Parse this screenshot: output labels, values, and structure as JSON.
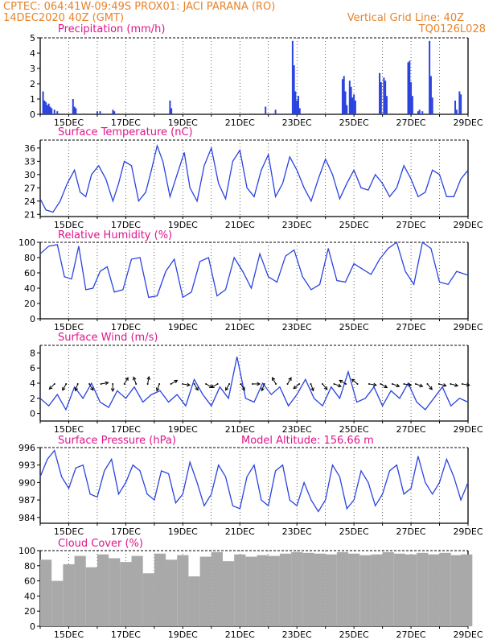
{
  "header": {
    "line1": "CPTEC:  064:41W-09:49S   PROX01: JACI PARANA (RO)",
    "line2": "14DEC2020 40Z (GMT)",
    "right1": "Vertical Grid Line: 40Z",
    "right2": "TQ0126L028"
  },
  "colors": {
    "header": "#e8832a",
    "panel_title": "#e0148c",
    "series": "#2a43e0",
    "cloud": "#a9a9a9",
    "grid": "#000000"
  },
  "chart_data": [
    {
      "type": "bar",
      "id": "precip",
      "title": "Precipitation (mm/h)",
      "ylim": [
        0,
        5
      ],
      "yticks": [
        0,
        1,
        2,
        3,
        4,
        5
      ],
      "xticks": [
        "15DEC",
        "17DEC",
        "19DEC",
        "21DEC",
        "23DEC",
        "25DEC",
        "27DEC",
        "29DEC"
      ],
      "bars": [
        {
          "t": 0.1,
          "v": 1.5
        },
        {
          "t": 0.15,
          "v": 0.9
        },
        {
          "t": 0.2,
          "v": 0.8
        },
        {
          "t": 0.25,
          "v": 0.6
        },
        {
          "t": 0.3,
          "v": 0.7
        },
        {
          "t": 0.35,
          "v": 0.5
        },
        {
          "t": 0.4,
          "v": 0.4
        },
        {
          "t": 0.5,
          "v": 0.3
        },
        {
          "t": 0.6,
          "v": 0.2
        },
        {
          "t": 1.15,
          "v": 1.0
        },
        {
          "t": 1.2,
          "v": 0.5
        },
        {
          "t": 1.25,
          "v": 0.4
        },
        {
          "t": 2.0,
          "v": 0.2
        },
        {
          "t": 2.1,
          "v": 0.2
        },
        {
          "t": 2.55,
          "v": 0.3
        },
        {
          "t": 2.6,
          "v": 0.2
        },
        {
          "t": 4.55,
          "v": 0.9
        },
        {
          "t": 4.6,
          "v": 0.4
        },
        {
          "t": 7.9,
          "v": 0.5
        },
        {
          "t": 8.25,
          "v": 0.3
        },
        {
          "t": 8.85,
          "v": 4.8
        },
        {
          "t": 8.9,
          "v": 3.2
        },
        {
          "t": 8.95,
          "v": 1.5
        },
        {
          "t": 9.0,
          "v": 0.9
        },
        {
          "t": 9.05,
          "v": 1.2
        },
        {
          "t": 9.1,
          "v": 0.4
        },
        {
          "t": 10.6,
          "v": 2.3
        },
        {
          "t": 10.65,
          "v": 2.5
        },
        {
          "t": 10.7,
          "v": 1.5
        },
        {
          "t": 10.75,
          "v": 0.6
        },
        {
          "t": 10.85,
          "v": 2.2
        },
        {
          "t": 10.9,
          "v": 1.8
        },
        {
          "t": 10.95,
          "v": 1.1
        },
        {
          "t": 11.0,
          "v": 1.3
        },
        {
          "t": 11.05,
          "v": 0.9
        },
        {
          "t": 11.9,
          "v": 2.7
        },
        {
          "t": 11.95,
          "v": 2.1
        },
        {
          "t": 12.05,
          "v": 2.4
        },
        {
          "t": 12.1,
          "v": 2.2
        },
        {
          "t": 12.15,
          "v": 1.2
        },
        {
          "t": 12.9,
          "v": 3.4
        },
        {
          "t": 12.95,
          "v": 3.5
        },
        {
          "t": 13.0,
          "v": 2.1
        },
        {
          "t": 13.05,
          "v": 1.2
        },
        {
          "t": 13.25,
          "v": 0.2
        },
        {
          "t": 13.3,
          "v": 0.3
        },
        {
          "t": 13.4,
          "v": 0.2
        },
        {
          "t": 13.65,
          "v": 4.8
        },
        {
          "t": 13.7,
          "v": 2.5
        },
        {
          "t": 13.75,
          "v": 1.1
        },
        {
          "t": 14.55,
          "v": 0.9
        },
        {
          "t": 14.6,
          "v": 0.3
        },
        {
          "t": 14.7,
          "v": 1.5
        },
        {
          "t": 14.75,
          "v": 1.3
        }
      ]
    },
    {
      "type": "line",
      "id": "temp",
      "title": "Surface Temperature (nC)",
      "ylim": [
        20.5,
        37.8
      ],
      "yticks": [
        21,
        24,
        27,
        30,
        33,
        36
      ],
      "xticks": [
        "15DEC",
        "17DEC",
        "19DEC",
        "21DEC",
        "23DEC",
        "25DEC",
        "27DEC",
        "29DEC"
      ],
      "x": [
        0,
        0.2,
        0.45,
        0.7,
        0.95,
        1.2,
        1.4,
        1.6,
        1.8,
        2.05,
        2.3,
        2.55,
        2.75,
        2.95,
        3.2,
        3.45,
        3.7,
        3.9,
        4.1,
        4.3,
        4.55,
        4.8,
        5.05,
        5.25,
        5.5,
        5.75,
        6.0,
        6.25,
        6.5,
        6.75,
        7.0,
        7.25,
        7.5,
        7.75,
        8.0,
        8.25,
        8.5,
        8.75,
        9.0,
        9.25,
        9.5,
        9.75,
        10.0,
        10.25,
        10.5,
        10.75,
        11.0,
        11.25,
        11.5,
        11.75,
        12.0,
        12.25,
        12.5,
        12.75,
        13.0,
        13.25,
        13.5,
        13.75,
        14.0,
        14.25,
        14.5,
        14.75,
        15.0
      ],
      "y": [
        24.5,
        22.0,
        21.5,
        24.0,
        28.0,
        31.0,
        26.0,
        25.0,
        30.0,
        32.0,
        29.0,
        24.0,
        28.0,
        33.0,
        32.0,
        24.0,
        26.0,
        31.0,
        36.5,
        33.0,
        25.0,
        30.0,
        35.0,
        27.0,
        24.0,
        32.0,
        36.0,
        28.0,
        24.5,
        33.0,
        35.5,
        27.0,
        25.0,
        31.0,
        34.5,
        25.0,
        28.0,
        34.0,
        31.0,
        27.0,
        24.0,
        29.0,
        33.5,
        30.0,
        24.5,
        28.0,
        31.0,
        27.0,
        26.5,
        30.0,
        28.0,
        25.0,
        27.0,
        32.0,
        29.0,
        25.0,
        26.0,
        31.0,
        30.0,
        25.0,
        25.0,
        29.0,
        31.0
      ]
    },
    {
      "type": "line",
      "id": "rh",
      "title": "Relative Humidity (%)",
      "ylim": [
        0,
        100
      ],
      "yticks": [
        0,
        20,
        40,
        60,
        80,
        100
      ],
      "xticks": [
        "15DEC",
        "17DEC",
        "19DEC",
        "21DEC",
        "23DEC",
        "25DEC",
        "27DEC",
        "29DEC"
      ],
      "x": [
        0,
        0.3,
        0.6,
        0.85,
        1.1,
        1.35,
        1.6,
        1.85,
        2.1,
        2.35,
        2.6,
        2.9,
        3.2,
        3.5,
        3.8,
        4.1,
        4.4,
        4.7,
        5.0,
        5.3,
        5.6,
        5.9,
        6.2,
        6.5,
        6.8,
        7.1,
        7.4,
        7.7,
        8.0,
        8.3,
        8.6,
        8.9,
        9.2,
        9.5,
        9.8,
        10.1,
        10.4,
        10.7,
        11.0,
        11.3,
        11.6,
        11.9,
        12.2,
        12.5,
        12.8,
        13.1,
        13.4,
        13.7,
        14.0,
        14.3,
        14.6,
        15.0
      ],
      "y": [
        85,
        95,
        97,
        55,
        52,
        95,
        38,
        40,
        62,
        68,
        35,
        38,
        78,
        80,
        28,
        30,
        62,
        78,
        28,
        35,
        75,
        80,
        30,
        38,
        80,
        62,
        40,
        85,
        55,
        48,
        82,
        90,
        55,
        38,
        45,
        92,
        50,
        48,
        72,
        65,
        58,
        78,
        92,
        100,
        62,
        45,
        100,
        92,
        48,
        45,
        62,
        57
      ]
    },
    {
      "type": "line",
      "id": "wind",
      "title": "Surface Wind (m/s)",
      "ylim": [
        -1,
        9
      ],
      "yticks": [
        0,
        2,
        4,
        6,
        8
      ],
      "xticks": [
        "15DEC",
        "17DEC",
        "19DEC",
        "21DEC",
        "23DEC",
        "25DEC",
        "27DEC",
        "29DEC"
      ],
      "x": [
        0,
        0.3,
        0.6,
        0.9,
        1.2,
        1.5,
        1.8,
        2.1,
        2.4,
        2.7,
        3.0,
        3.3,
        3.6,
        3.9,
        4.2,
        4.5,
        4.8,
        5.1,
        5.4,
        5.7,
        6.0,
        6.3,
        6.6,
        6.9,
        7.2,
        7.5,
        7.8,
        8.1,
        8.4,
        8.7,
        9.0,
        9.3,
        9.6,
        9.9,
        10.2,
        10.5,
        10.8,
        11.1,
        11.4,
        11.7,
        12.0,
        12.3,
        12.6,
        12.9,
        13.2,
        13.5,
        13.8,
        14.1,
        14.4,
        14.7,
        15.0
      ],
      "y": [
        2.0,
        1.0,
        2.5,
        0.5,
        3.5,
        2.0,
        4.0,
        1.5,
        0.8,
        3.0,
        2.0,
        3.5,
        1.5,
        2.5,
        3.0,
        1.5,
        2.5,
        1.0,
        4.5,
        2.5,
        1.0,
        3.5,
        2.0,
        7.5,
        2.0,
        1.5,
        4.0,
        2.5,
        3.5,
        1.0,
        2.5,
        4.5,
        2.0,
        1.0,
        3.5,
        2.0,
        5.5,
        1.5,
        2.0,
        3.5,
        1.0,
        3.0,
        2.0,
        4.0,
        1.5,
        0.5,
        2.0,
        3.5,
        1.0,
        2.0,
        1.5
      ],
      "arrow_row": 3.9,
      "arrow_dirs_deg": [
        225,
        210,
        200,
        150,
        80,
        180,
        30,
        340,
        10,
        200,
        60,
        100,
        150,
        120,
        240,
        210,
        150,
        90,
        200,
        330,
        30,
        230,
        160,
        140,
        110,
        300,
        310,
        100,
        120,
        110,
        100,
        110,
        140,
        105,
        105,
        100
      ]
    },
    {
      "type": "line",
      "id": "pres",
      "title": "Surface Pressure (hPa)",
      "annotation": "Model Altitude: 156.66  m",
      "ylim": [
        983,
        996
      ],
      "yticks": [
        984,
        987,
        990,
        993,
        996
      ],
      "xticks": [
        "15DEC",
        "17DEC",
        "19DEC",
        "21DEC",
        "23DEC",
        "25DEC",
        "27DEC",
        "29DEC"
      ],
      "x": [
        0,
        0.25,
        0.5,
        0.75,
        1.0,
        1.25,
        1.5,
        1.75,
        2.0,
        2.25,
        2.5,
        2.75,
        3.0,
        3.25,
        3.5,
        3.75,
        4.0,
        4.25,
        4.5,
        4.75,
        5.0,
        5.25,
        5.5,
        5.75,
        6.0,
        6.25,
        6.5,
        6.75,
        7.0,
        7.25,
        7.5,
        7.75,
        8.0,
        8.25,
        8.5,
        8.75,
        9.0,
        9.25,
        9.5,
        9.75,
        10.0,
        10.25,
        10.5,
        10.75,
        11.0,
        11.25,
        11.5,
        11.75,
        12.0,
        12.25,
        12.5,
        12.75,
        13.0,
        13.25,
        13.5,
        13.75,
        14.0,
        14.25,
        14.5,
        14.75,
        15.0
      ],
      "y": [
        991,
        994,
        995.5,
        991,
        989,
        992.5,
        993,
        988,
        987.5,
        992,
        994,
        988,
        990,
        993,
        992,
        988,
        987,
        992,
        991.5,
        986.5,
        988,
        993.5,
        990,
        986,
        988,
        993,
        991,
        986,
        985.5,
        991,
        993,
        987,
        986,
        992,
        993,
        987,
        986,
        990,
        987,
        985,
        987,
        993,
        991,
        985.5,
        987,
        992,
        990,
        986,
        988,
        992,
        993,
        988,
        989,
        994.5,
        990,
        988,
        990,
        994,
        991,
        987,
        990
      ]
    },
    {
      "type": "bar",
      "id": "cloud",
      "title": "Cloud Cover (%)",
      "ylim": [
        0,
        100
      ],
      "yticks": [
        0,
        20,
        40,
        60,
        80,
        100
      ],
      "xticks": [
        "15DEC",
        "17DEC",
        "19DEC",
        "21DEC",
        "23DEC",
        "25DEC",
        "27DEC",
        "29DEC"
      ],
      "bars": [
        {
          "t": 0.2,
          "v": 88
        },
        {
          "t": 0.6,
          "v": 60
        },
        {
          "t": 1.0,
          "v": 82
        },
        {
          "t": 1.4,
          "v": 93
        },
        {
          "t": 1.8,
          "v": 78
        },
        {
          "t": 2.2,
          "v": 95
        },
        {
          "t": 2.6,
          "v": 90
        },
        {
          "t": 3.0,
          "v": 85
        },
        {
          "t": 3.4,
          "v": 93
        },
        {
          "t": 3.8,
          "v": 70
        },
        {
          "t": 4.2,
          "v": 96
        },
        {
          "t": 4.6,
          "v": 88
        },
        {
          "t": 5.0,
          "v": 94
        },
        {
          "t": 5.4,
          "v": 66
        },
        {
          "t": 5.8,
          "v": 92
        },
        {
          "t": 6.2,
          "v": 98
        },
        {
          "t": 6.6,
          "v": 86
        },
        {
          "t": 7.0,
          "v": 95
        },
        {
          "t": 7.4,
          "v": 92
        },
        {
          "t": 7.8,
          "v": 94
        },
        {
          "t": 8.2,
          "v": 93
        },
        {
          "t": 8.6,
          "v": 96
        },
        {
          "t": 9.0,
          "v": 98
        },
        {
          "t": 9.4,
          "v": 97
        },
        {
          "t": 9.8,
          "v": 96
        },
        {
          "t": 10.2,
          "v": 95
        },
        {
          "t": 10.6,
          "v": 98
        },
        {
          "t": 11.0,
          "v": 96
        },
        {
          "t": 11.4,
          "v": 94
        },
        {
          "t": 11.8,
          "v": 95
        },
        {
          "t": 12.2,
          "v": 98
        },
        {
          "t": 12.6,
          "v": 96
        },
        {
          "t": 13.0,
          "v": 95
        },
        {
          "t": 13.4,
          "v": 97
        },
        {
          "t": 13.8,
          "v": 95
        },
        {
          "t": 14.2,
          "v": 97
        },
        {
          "t": 14.6,
          "v": 94
        },
        {
          "t": 14.95,
          "v": 95
        }
      ]
    }
  ]
}
